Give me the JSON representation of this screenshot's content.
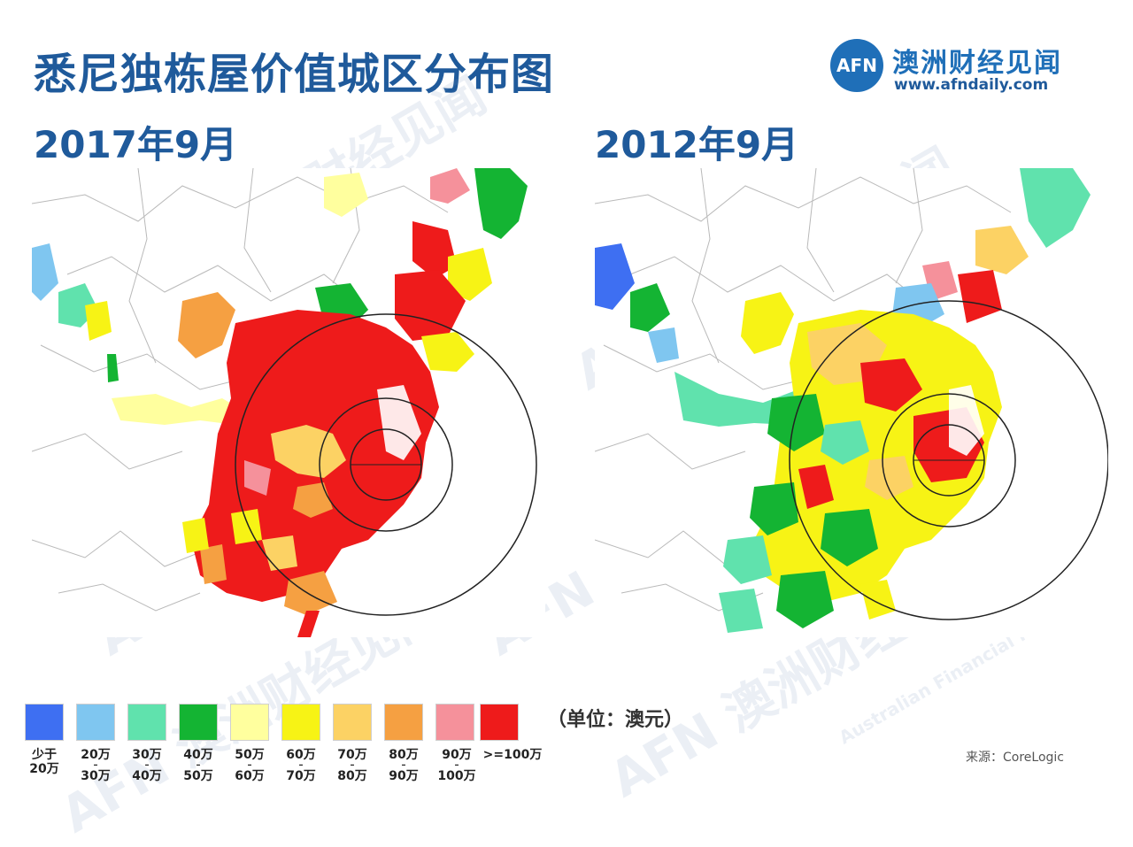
{
  "header": {
    "title": "悉尼独栋屋价值城区分布图",
    "logo_mark": "AFN",
    "logo_name": "澳洲财经见闻",
    "logo_url": "www.afndaily.com"
  },
  "maps": [
    {
      "date_label": "2017年9月"
    },
    {
      "date_label": "2012年9月"
    }
  ],
  "legend": {
    "unit": "（单位：澳元）",
    "items": [
      {
        "top": "少于",
        "bottom": "20万",
        "color": "#3e6ff2"
      },
      {
        "top": "20万",
        "bottom": "30万",
        "color": "#7fc6f0"
      },
      {
        "top": "30万",
        "bottom": "40万",
        "color": "#60e2ad"
      },
      {
        "top": "40万",
        "bottom": "50万",
        "color": "#14b433"
      },
      {
        "top": "50万",
        "bottom": "60万",
        "color": "#ffff9e"
      },
      {
        "top": "60万",
        "bottom": "70万",
        "color": "#f7f315"
      },
      {
        "top": "70万",
        "bottom": "80万",
        "color": "#fcd264"
      },
      {
        "top": "80万",
        "bottom": "90万",
        "color": "#f5a042"
      },
      {
        "top": "90万",
        "bottom": "100万",
        "color": "#f5919b"
      },
      {
        "top": ">=100万",
        "bottom": "",
        "color": "#ee1b1b"
      }
    ]
  },
  "source": "来源：CoreLogic",
  "watermark": {
    "mark": "AFN",
    "cn": "澳洲财经见闻",
    "en": "Australian Financial News"
  }
}
